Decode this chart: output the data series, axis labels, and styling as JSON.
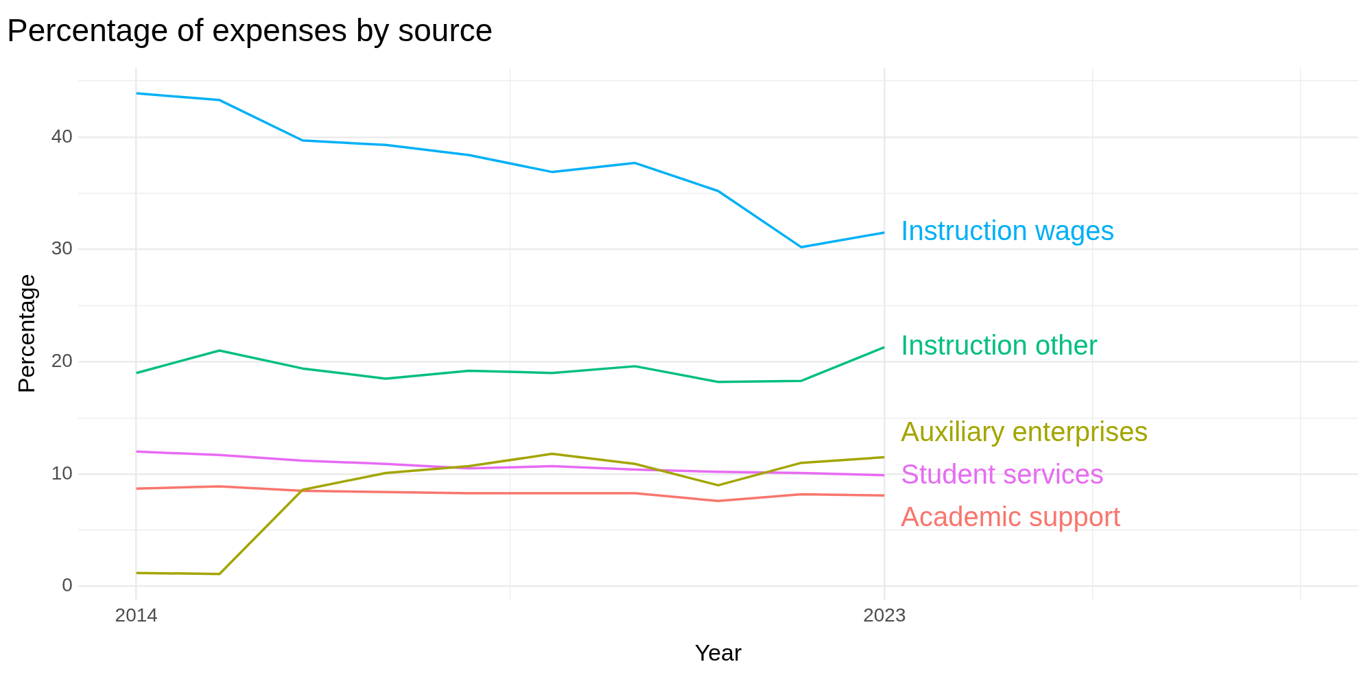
{
  "chart_data": {
    "type": "line",
    "title": "Percentage of expenses by source",
    "xlabel": "Year",
    "ylabel": "Percentage",
    "x": [
      2014,
      2015,
      2016,
      2017,
      2018,
      2019,
      2020,
      2021,
      2022,
      2023
    ],
    "series": [
      {
        "name": "Instruction wages",
        "color": "#00b0f6",
        "values": [
          43.9,
          43.3,
          39.7,
          39.3,
          38.4,
          36.9,
          37.7,
          35.2,
          30.2,
          31.5
        ]
      },
      {
        "name": "Instruction other",
        "color": "#00bf7d",
        "values": [
          19.0,
          21.0,
          19.4,
          18.5,
          19.2,
          19.0,
          19.6,
          18.2,
          18.3,
          21.3
        ]
      },
      {
        "name": "Auxiliary enterprises",
        "color": "#a3a500",
        "values": [
          1.2,
          1.1,
          8.6,
          10.1,
          10.7,
          11.8,
          10.9,
          9.0,
          11.0,
          11.5
        ]
      },
      {
        "name": "Student services",
        "color": "#e76bf3",
        "values": [
          12.0,
          11.7,
          11.2,
          10.9,
          10.5,
          10.7,
          10.4,
          10.2,
          10.1,
          9.9
        ]
      },
      {
        "name": "Academic support",
        "color": "#f8766d",
        "values": [
          8.7,
          8.9,
          8.5,
          8.4,
          8.3,
          8.3,
          8.3,
          7.6,
          8.2,
          8.1
        ]
      }
    ],
    "xlim": [
      2013.3,
      2028.7
    ],
    "xticks": [
      2014,
      {
        "value": 2018.5,
        "label": null
      },
      2023,
      {
        "value": 2025.5,
        "label": null
      },
      {
        "value": 2028,
        "label": null
      }
    ],
    "ylim": [
      -1.15,
      46.15
    ],
    "yticks": [
      0,
      {
        "value": 5,
        "label": null
      },
      10,
      {
        "value": 15,
        "label": null
      },
      20,
      {
        "value": 25,
        "label": null
      },
      30,
      {
        "value": 35,
        "label": null
      },
      40,
      {
        "value": 45,
        "label": null
      }
    ],
    "grid": true,
    "legend": false,
    "marker": "none",
    "line_style": "solid"
  }
}
